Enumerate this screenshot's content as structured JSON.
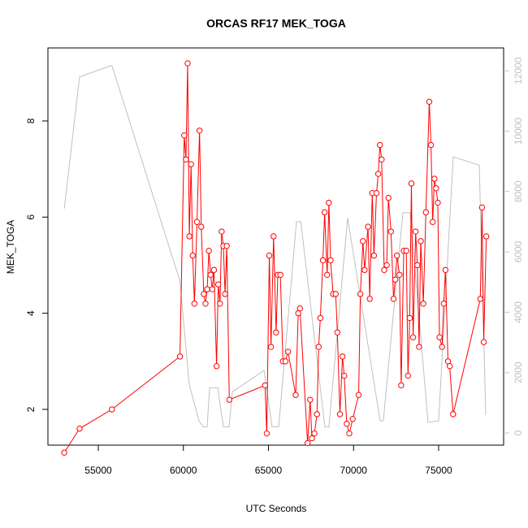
{
  "chart_data": {
    "type": "line",
    "title": "ORCAS RF17 MEK_TOGA",
    "x_label": "UTC Seconds",
    "y_label": "MEK_TOGA",
    "xlim": [
      52041,
      78819
    ],
    "ylim": [
      1.256,
      9.52
    ],
    "y2lim": [
      -404,
      12758
    ],
    "xticks": [
      55000,
      60000,
      65000,
      70000,
      75000
    ],
    "yticks": [
      2,
      4,
      6,
      8
    ],
    "y2ticks": [
      0,
      2000,
      4000,
      6000,
      8000,
      10000,
      12000
    ],
    "series": [
      {
        "name": "MEK_TOGA",
        "color": "#ff0000",
        "markers": true,
        "x": [
          53000,
          53900,
          55800,
          59800,
          60050,
          60150,
          60250,
          60350,
          60450,
          60550,
          60650,
          60800,
          60950,
          61050,
          61200,
          61300,
          61400,
          61500,
          61600,
          61700,
          61800,
          61950,
          62050,
          62150,
          62250,
          62350,
          62450,
          62550,
          62700,
          64800,
          64900,
          65050,
          65150,
          65300,
          65450,
          65550,
          65700,
          65850,
          66000,
          66150,
          66600,
          66750,
          66850,
          67300,
          67450,
          67550,
          67700,
          67850,
          67950,
          68050,
          68200,
          68300,
          68450,
          68550,
          68650,
          68800,
          68950,
          69050,
          69200,
          69350,
          69450,
          69600,
          69750,
          69950,
          70300,
          70400,
          70550,
          70650,
          70850,
          70950,
          71100,
          71200,
          71350,
          71450,
          71550,
          71650,
          71800,
          71950,
          72050,
          72200,
          72350,
          72450,
          72550,
          72700,
          72800,
          72950,
          73100,
          73200,
          73300,
          73400,
          73500,
          73650,
          73750,
          73850,
          73950,
          74100,
          74250,
          74450,
          74550,
          74650,
          74750,
          74850,
          74950,
          75050,
          75200,
          75300,
          75400,
          75550,
          75650,
          75850,
          77450,
          77550,
          77650,
          77800
        ],
        "values": [
          1.1,
          1.6,
          2.0,
          3.1,
          7.7,
          7.2,
          9.2,
          5.6,
          7.1,
          5.2,
          4.2,
          5.9,
          7.8,
          5.8,
          4.4,
          4.2,
          4.5,
          5.3,
          4.8,
          4.5,
          4.9,
          2.9,
          4.6,
          4.2,
          5.7,
          5.4,
          4.4,
          5.4,
          2.2,
          2.5,
          1.5,
          5.2,
          3.3,
          5.6,
          3.6,
          4.8,
          4.8,
          3.0,
          3.0,
          3.2,
          2.3,
          4.0,
          4.1,
          1.3,
          2.2,
          1.4,
          1.5,
          1.9,
          3.3,
          3.9,
          5.1,
          6.1,
          4.8,
          6.3,
          5.1,
          4.4,
          4.4,
          3.6,
          1.9,
          3.1,
          2.7,
          1.7,
          1.5,
          1.8,
          2.3,
          4.4,
          5.5,
          4.9,
          5.8,
          4.3,
          6.5,
          5.2,
          6.5,
          6.9,
          7.5,
          7.2,
          4.9,
          5.0,
          6.4,
          5.7,
          4.3,
          4.7,
          5.2,
          4.8,
          2.5,
          5.3,
          5.3,
          2.7,
          3.9,
          6.7,
          3.5,
          5.7,
          5.0,
          3.3,
          5.5,
          4.2,
          6.1,
          8.4,
          7.5,
          5.9,
          6.8,
          6.6,
          6.3,
          3.5,
          3.3,
          4.2,
          4.9,
          3.0,
          2.9,
          1.9,
          4.3,
          6.2,
          3.4,
          5.6
        ]
      },
      {
        "color": "#c0c0c0",
        "axis": "y2",
        "markers": false,
        "x": [
          53000,
          53900,
          55800,
          59800,
          60346,
          60919,
          61158,
          61397,
          61540,
          62017,
          62351,
          62685,
          62876,
          64738,
          65214,
          65600,
          66647,
          66900,
          68317,
          68550,
          69653,
          71563,
          71750,
          72899,
          73328,
          74378,
          74999,
          75858,
          77387,
          77769
        ],
        "values": [
          7430,
          11800,
          12180,
          5030,
          1600,
          400,
          200,
          200,
          1500,
          1500,
          200,
          200,
          1360,
          2070,
          200,
          200,
          7000,
          7000,
          200,
          200,
          7125,
          400,
          400,
          7300,
          7300,
          350,
          400,
          9150,
          8870,
          600
        ]
      }
    ]
  }
}
